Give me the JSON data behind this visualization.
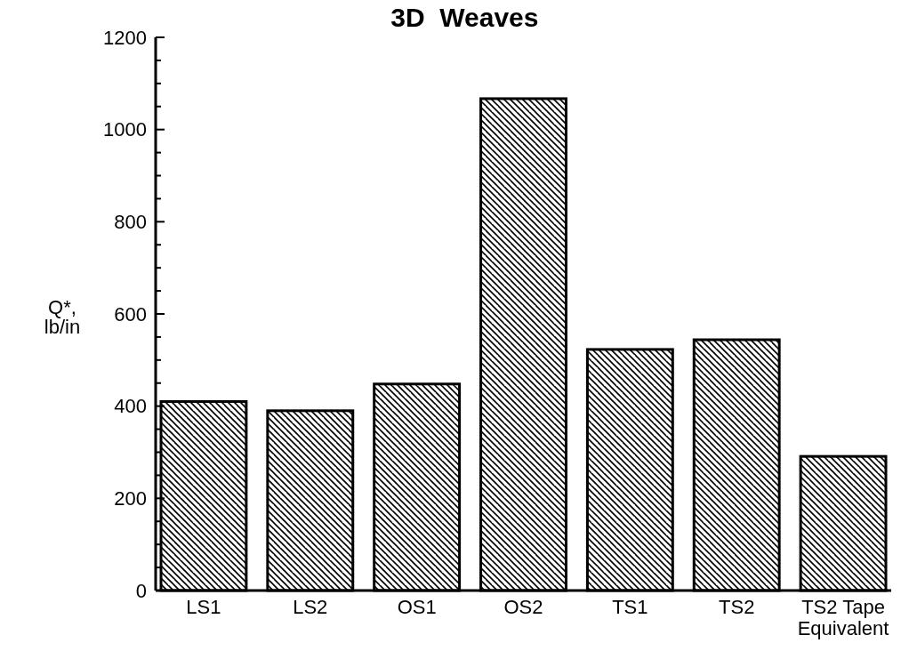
{
  "chart_data": {
    "type": "bar",
    "title": "3D  Weaves",
    "ylabel": "Q*, lb/in",
    "categories": [
      "LS1",
      "LS2",
      "OS1",
      "OS2",
      "TS1",
      "TS2",
      "TS2 Tape Equivalent"
    ],
    "values": [
      410,
      390,
      448,
      1067,
      523,
      544,
      291
    ],
    "color": "#000000",
    "ylim": [
      0,
      1200
    ],
    "yticks": [
      0,
      {
        "value": 50,
        "label": null
      },
      {
        "value": 100,
        "label": null
      },
      {
        "value": 150,
        "label": null
      },
      200,
      {
        "value": 250,
        "label": null
      },
      {
        "value": 300,
        "label": null
      },
      {
        "value": 350,
        "label": null
      },
      400,
      {
        "value": 450,
        "label": null
      },
      {
        "value": 500,
        "label": null
      },
      {
        "value": 550,
        "label": null
      },
      600,
      {
        "value": 650,
        "label": null
      },
      {
        "value": 700,
        "label": null
      },
      {
        "value": 750,
        "label": null
      },
      800,
      {
        "value": 850,
        "label": null
      },
      {
        "value": 900,
        "label": null
      },
      {
        "value": 950,
        "label": null
      },
      1000,
      {
        "value": 1050,
        "label": null
      },
      {
        "value": 1100,
        "label": null
      },
      {
        "value": 1150,
        "label": null
      },
      1200
    ],
    "grid": false
  }
}
